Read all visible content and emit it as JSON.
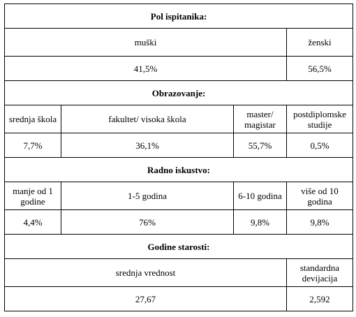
{
  "table": {
    "sections": [
      {
        "title": "Pol ispitanika:",
        "labels": [
          "muški",
          "ženski"
        ],
        "values": [
          "41,5%",
          "56,5%"
        ]
      },
      {
        "title": "Obrazovanje:",
        "labels": [
          "srednja škola",
          "fakultet/ visoka škola",
          "master/ magistar",
          "postdiplomske studije"
        ],
        "values": [
          "7,7%",
          "36,1%",
          "55,7%",
          "0,5%"
        ]
      },
      {
        "title": "Radno iskustvo:",
        "labels": [
          "manje od 1 godine",
          "1-5 godina",
          "6-10 godina",
          "više od 10 godina"
        ],
        "values": [
          "4,4%",
          "76%",
          "9,8%",
          "9,8%"
        ]
      },
      {
        "title": "Godine starosti:",
        "labels": [
          "srednja vrednost",
          "standardna devijacija"
        ],
        "values": [
          "27,67",
          "2,592"
        ]
      }
    ]
  }
}
